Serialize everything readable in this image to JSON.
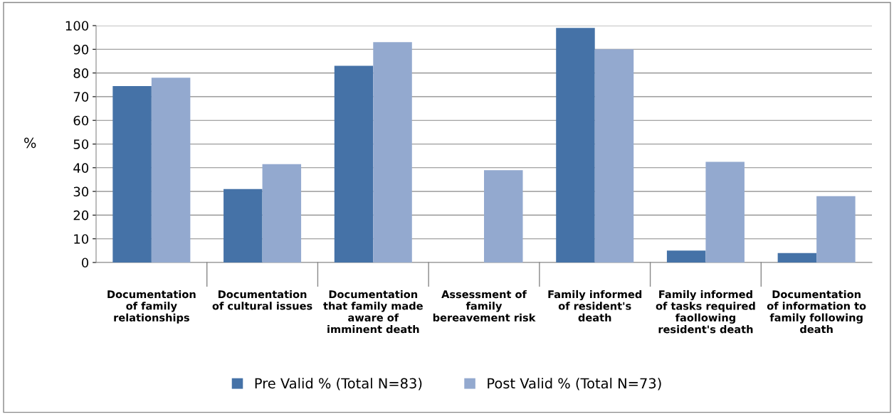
{
  "chart_data": {
    "type": "bar",
    "ylabel": "%",
    "categories": [
      "Documentation\nof family\nrelationships",
      "Documentation\nof cultural issues",
      "Documentation\nthat family made\naware of\nimminent death",
      "Assessment of\nfamily\nbereavement risk",
      "Family informed\nof resident's\ndeath",
      "Family informed\nof tasks required\nfaollowing\nresident's death",
      "Documentation\nof information to\nfamily following\ndeath"
    ],
    "series": [
      {
        "name": "Pre Valid % (Total N=83)",
        "color": "#4572a7",
        "values": [
          74.5,
          31,
          83,
          0,
          99,
          5,
          4
        ]
      },
      {
        "name": "Post Valid % (Total N=73)",
        "color": "#93a9cf",
        "values": [
          78,
          41.5,
          93,
          39,
          90,
          42.5,
          28
        ]
      }
    ],
    "ylim": [
      0,
      100
    ],
    "yticks": [
      0,
      10,
      20,
      30,
      40,
      50,
      60,
      70,
      80,
      90,
      100
    ],
    "grid": "y",
    "legend": "bottom"
  }
}
